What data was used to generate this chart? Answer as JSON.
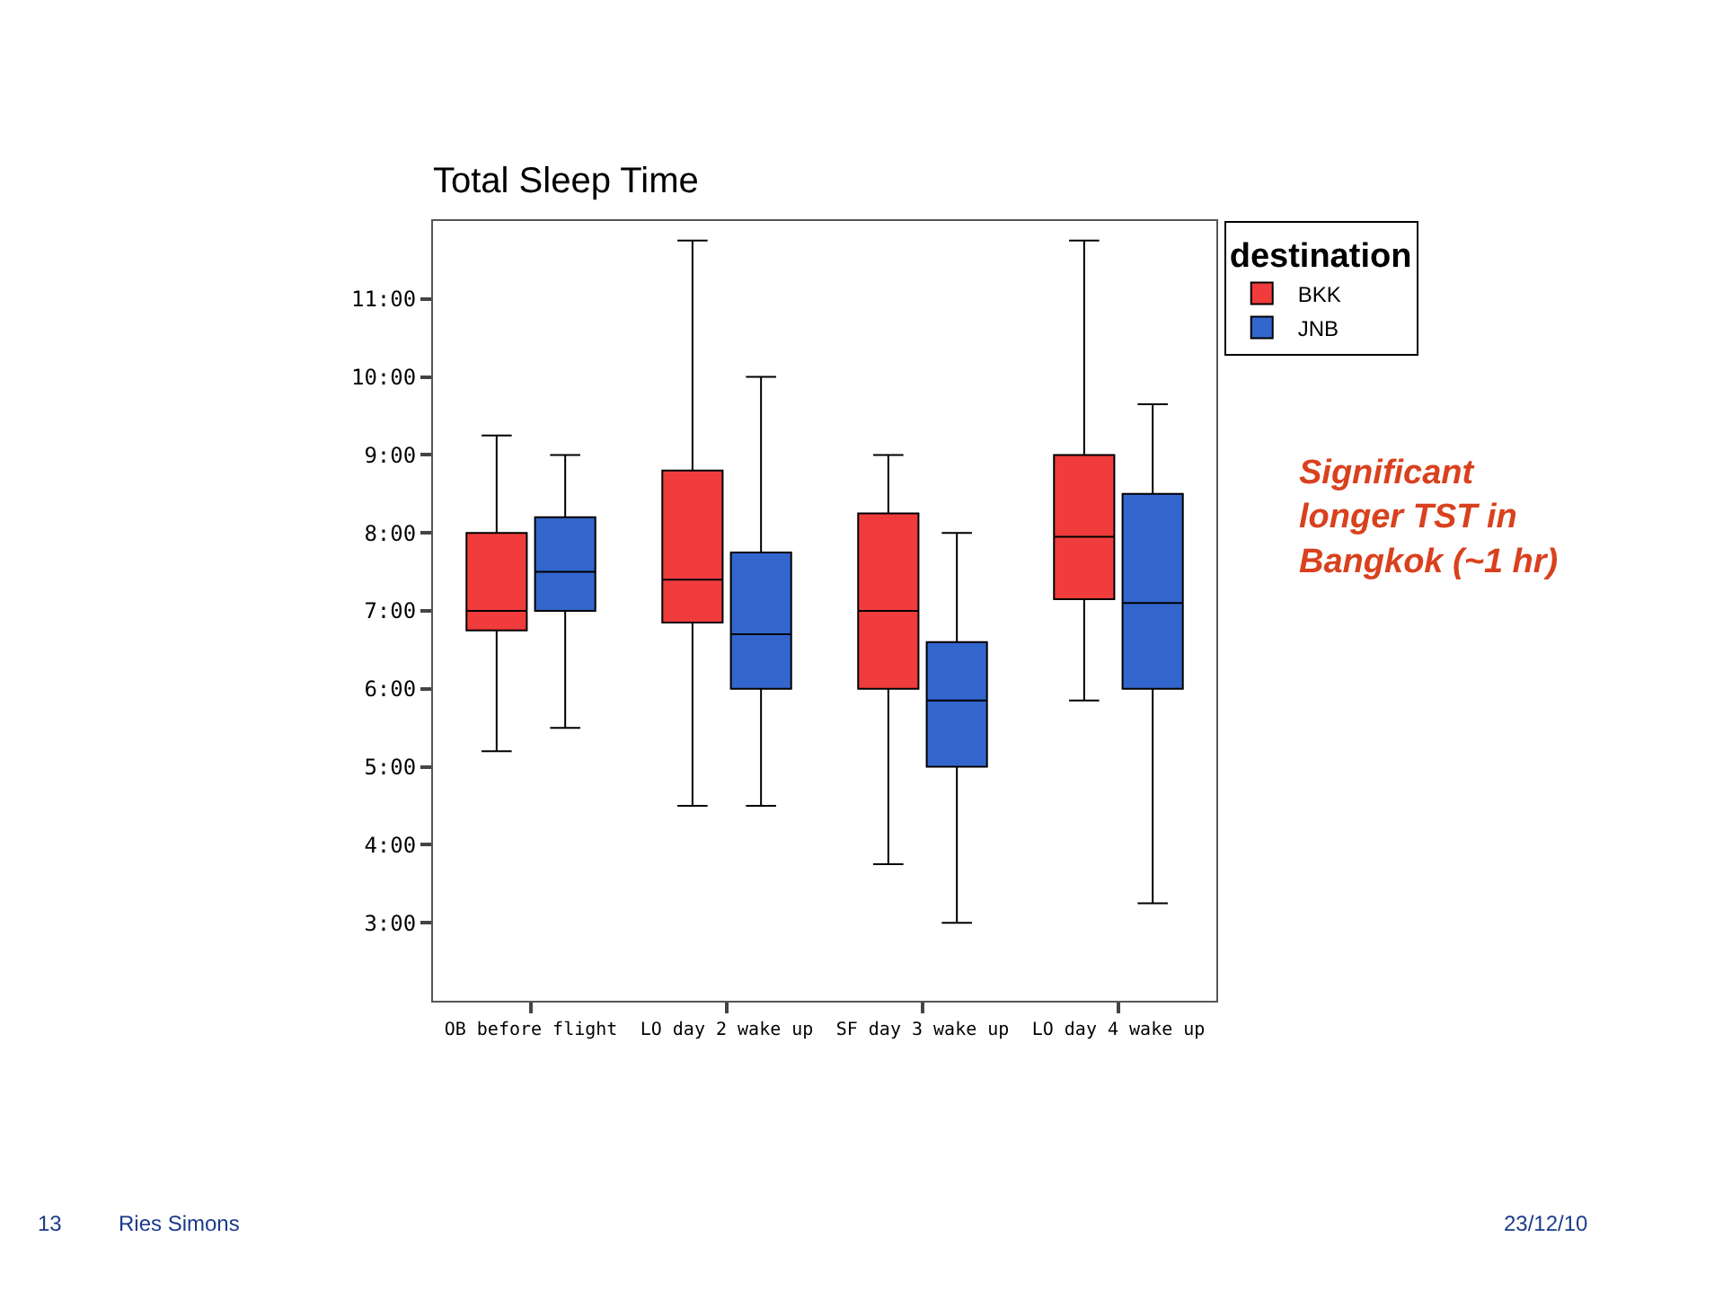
{
  "chart_data": {
    "type": "box",
    "title": "Total Sleep Time",
    "legend_title": "destination",
    "legend": "top right",
    "grid": false,
    "categories": [
      "OB before flight",
      "LO day 2 wake up",
      "SF day 3 wake up",
      "LO day 4 wake up"
    ],
    "series": [
      {
        "name": "BKK",
        "color": "#f03c3c",
        "boxes": [
          {
            "low": 5.2,
            "q1": 6.75,
            "median": 7.0,
            "q3": 8.0,
            "high": 9.25
          },
          {
            "low": 4.5,
            "q1": 6.85,
            "median": 7.4,
            "q3": 8.8,
            "high": 11.75
          },
          {
            "low": 3.75,
            "q1": 6.0,
            "median": 7.0,
            "q3": 8.25,
            "high": 9.0
          },
          {
            "low": 5.85,
            "q1": 7.15,
            "median": 7.95,
            "q3": 9.0,
            "high": 11.75
          }
        ]
      },
      {
        "name": "JNB",
        "color": "#3366cc",
        "boxes": [
          {
            "low": 5.5,
            "q1": 7.0,
            "median": 7.5,
            "q3": 8.2,
            "high": 9.0
          },
          {
            "low": 4.5,
            "q1": 6.0,
            "median": 6.7,
            "q3": 7.75,
            "high": 10.0
          },
          {
            "low": 3.0,
            "q1": 5.0,
            "median": 5.85,
            "q3": 6.6,
            "high": 8.0
          },
          {
            "low": 3.25,
            "q1": 6.0,
            "median": 7.1,
            "q3": 8.5,
            "high": 9.65
          }
        ]
      }
    ],
    "ylim": [
      2,
      12
    ],
    "yticks": [
      {
        "value": 3,
        "label": "3:00"
      },
      {
        "value": 4,
        "label": "4:00"
      },
      {
        "value": 5,
        "label": "5:00"
      },
      {
        "value": 6,
        "label": "6:00"
      },
      {
        "value": 7,
        "label": "7:00"
      },
      {
        "value": 8,
        "label": "8:00"
      },
      {
        "value": 9,
        "label": "9:00"
      },
      {
        "value": 10,
        "label": "10:00"
      },
      {
        "value": 11,
        "label": "11:00"
      }
    ],
    "annotations": [
      "Significant\nlonger TST in\nBangkok (~1 hr)",
      "13",
      "Ries Simons",
      "23/12/10"
    ]
  }
}
